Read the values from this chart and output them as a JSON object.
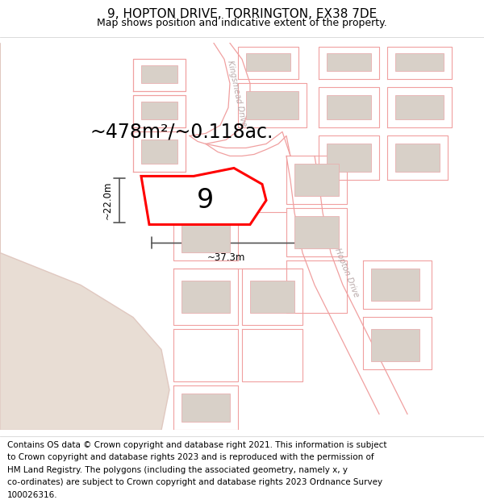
{
  "title_line1": "9, HOPTON DRIVE, TORRINGTON, EX38 7DE",
  "title_line2": "Map shows position and indicative extent of the property.",
  "footer_lines": [
    "Contains OS data © Crown copyright and database right 2021. This information is subject",
    "to Crown copyright and database rights 2023 and is reproduced with the permission of",
    "HM Land Registry. The polygons (including the associated geometry, namely x, y",
    "co-ordinates) are subject to Crown copyright and database rights 2023 Ordnance Survey",
    "100026316."
  ],
  "area_label": "~478m²/~0.118ac.",
  "width_label": "~37.3m",
  "height_label": "~22.0m",
  "number_label": "9",
  "bg_color": "#ffffff",
  "map_bg": "#ffffff",
  "open_land_color": "#e8ddd4",
  "open_land_edge": "#e0c8c0",
  "plot_fill": "#ffffff",
  "building_fill": "#d8d0c8",
  "building_edge": "#e8b0b0",
  "road_line_color": "#f0a0a0",
  "plot_border_color": "#ff0000",
  "dim_line_color": "#555555",
  "road_label_color": "#b8a8a8",
  "title_fontsize": 11,
  "subtitle_fontsize": 9,
  "footer_fontsize": 7.5,
  "area_fontsize": 17,
  "number_fontsize": 24
}
